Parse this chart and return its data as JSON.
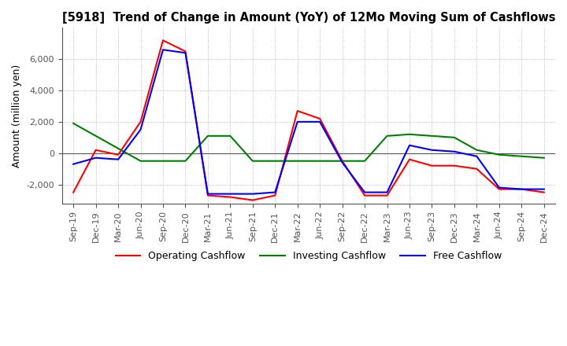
{
  "title": "[5918]  Trend of Change in Amount (YoY) of 12Mo Moving Sum of Cashflows",
  "ylabel": "Amount (million yen)",
  "x_labels": [
    "Sep-19",
    "Dec-19",
    "Mar-20",
    "Jun-20",
    "Sep-20",
    "Dec-20",
    "Mar-21",
    "Jun-21",
    "Sep-21",
    "Dec-21",
    "Mar-22",
    "Jun-22",
    "Sep-22",
    "Dec-22",
    "Mar-23",
    "Jun-23",
    "Sep-23",
    "Dec-23",
    "Mar-24",
    "Jun-24",
    "Sep-24",
    "Dec-24"
  ],
  "operating": [
    -2500,
    200,
    -100,
    2000,
    7200,
    6500,
    -2700,
    -2800,
    -3000,
    -2700,
    2700,
    2200,
    -500,
    -2700,
    -2700,
    -400,
    -800,
    -800,
    -1000,
    -2300,
    -2300,
    -2500
  ],
  "investing": [
    1900,
    1100,
    300,
    -500,
    -500,
    -500,
    1100,
    1100,
    -500,
    -500,
    -500,
    -500,
    -500,
    -500,
    1100,
    1200,
    1100,
    1000,
    200,
    -100,
    -200,
    -300
  ],
  "free": [
    -700,
    -300,
    -400,
    1500,
    6600,
    6400,
    -2600,
    -2600,
    -2600,
    -2500,
    2000,
    2000,
    -600,
    -2500,
    -2500,
    500,
    200,
    100,
    -200,
    -2200,
    -2300,
    -2300
  ],
  "ylim": [
    -3200,
    8000
  ],
  "yticks": [
    -2000,
    0,
    2000,
    4000,
    6000
  ],
  "operating_color": "#ff0000",
  "investing_color": "#008000",
  "free_color": "#0000ff",
  "background_color": "#ffffff",
  "grid_color": "#aaaaaa",
  "zero_line_color": "#555555"
}
